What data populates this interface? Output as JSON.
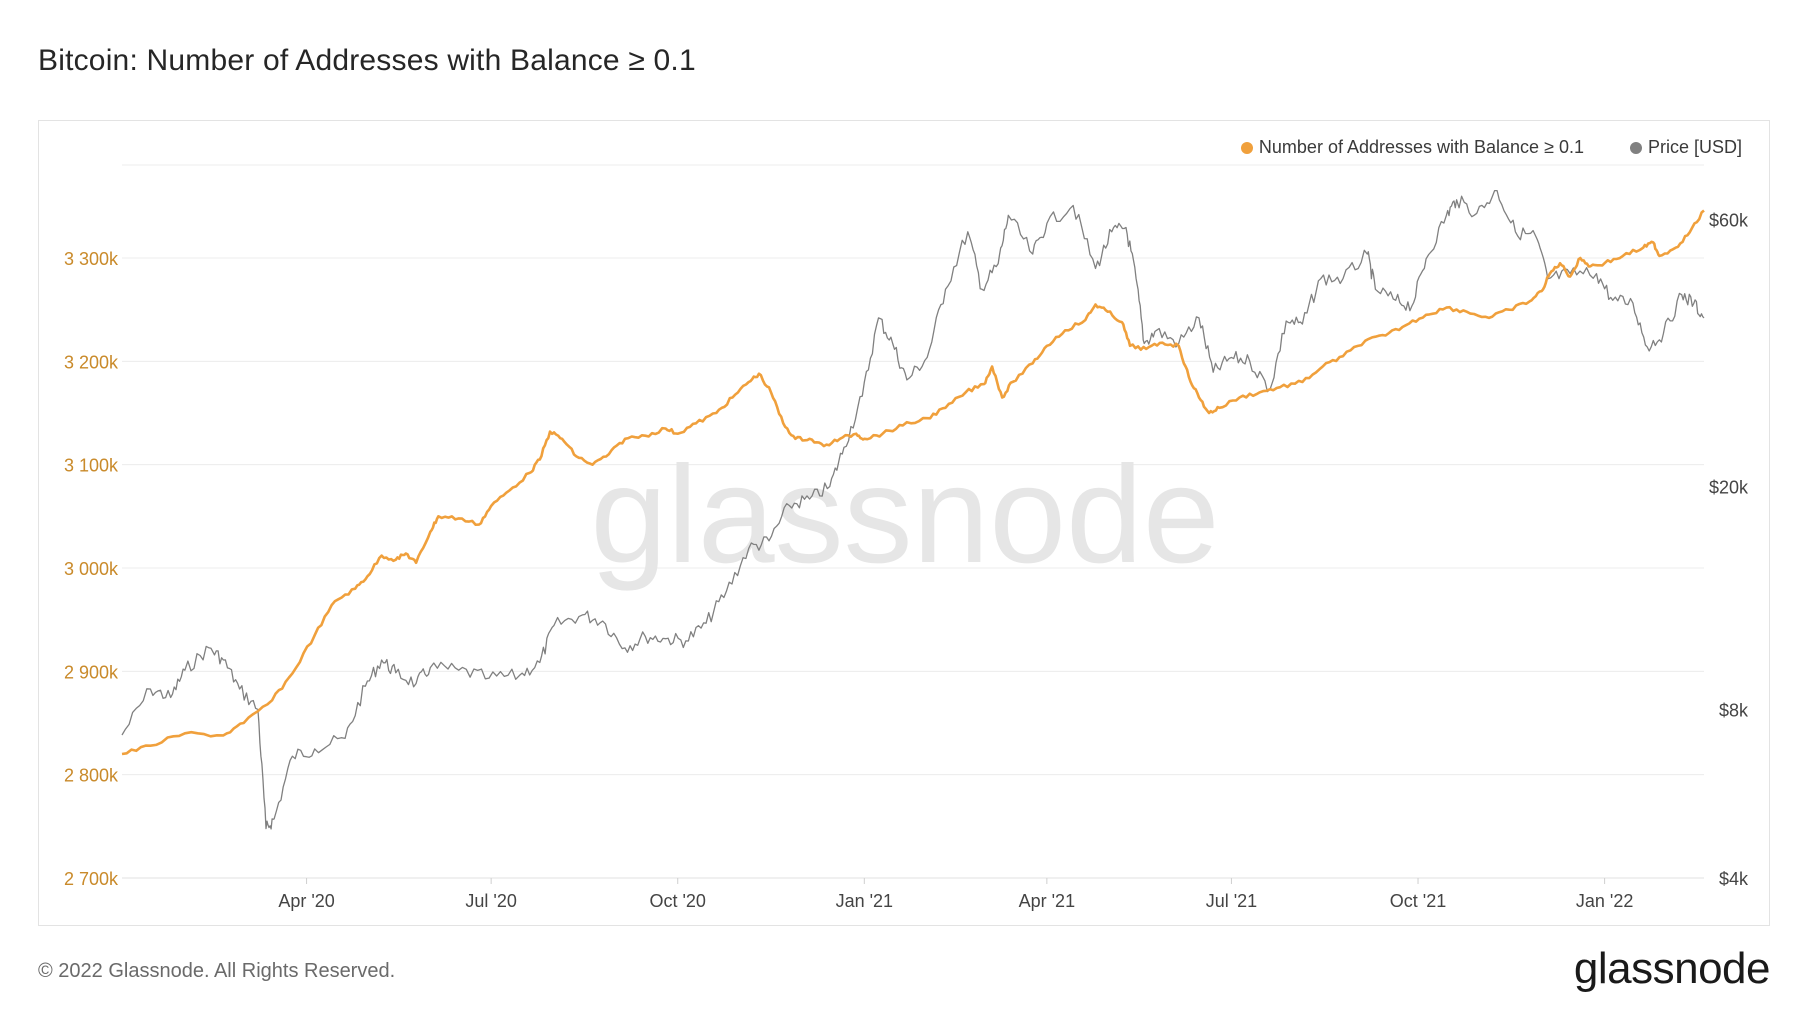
{
  "page": {
    "title": "Bitcoin: Number of Addresses with Balance ≥ 0.1",
    "copyright": "© 2022 Glassnode. All Rights Reserved.",
    "brand": "glassnode",
    "watermark": "glassnode"
  },
  "colors": {
    "addresses": "#f0a03c",
    "price": "#808080",
    "left_axis_text": "#c98a2a",
    "grid": "#ececec"
  },
  "chart_data": {
    "type": "line",
    "title": "Bitcoin: Number of Addresses with Balance ≥ 0.1",
    "x_range": [
      "2020-01-01",
      "2022-02-19"
    ],
    "x_ticks": [
      {
        "label": "Apr '20",
        "date": "2020-04-01"
      },
      {
        "label": "Jul '20",
        "date": "2020-07-01"
      },
      {
        "label": "Oct '20",
        "date": "2020-10-01"
      },
      {
        "label": "Jan '21",
        "date": "2021-01-01"
      },
      {
        "label": "Apr '21",
        "date": "2021-04-01"
      },
      {
        "label": "Jul '21",
        "date": "2021-07-01"
      },
      {
        "label": "Oct '21",
        "date": "2021-10-01"
      },
      {
        "label": "Jan '22",
        "date": "2022-01-01"
      }
    ],
    "y_left": {
      "scale": "linear",
      "range": [
        2700000,
        3390000
      ],
      "ticks": [
        {
          "label": "2 700k",
          "value": 2700000
        },
        {
          "label": "2 800k",
          "value": 2800000
        },
        {
          "label": "2 900k",
          "value": 2900000
        },
        {
          "label": "3 000k",
          "value": 3000000
        },
        {
          "label": "3 100k",
          "value": 3100000
        },
        {
          "label": "3 200k",
          "value": 3200000
        },
        {
          "label": "3 300k",
          "value": 3300000
        }
      ]
    },
    "y_right": {
      "scale": "log",
      "range": [
        4000,
        75000
      ],
      "ticks": [
        {
          "label": "$4k",
          "value": 4000
        },
        {
          "label": "$8k",
          "value": 8000
        },
        {
          "label": "$20k",
          "value": 20000
        },
        {
          "label": "$60k",
          "value": 60000
        }
      ]
    },
    "legend": [
      {
        "name": "Number of Addresses with Balance ≥ 0.1",
        "color": "#f0a03c"
      },
      {
        "name": "Price [USD]",
        "color": "#808080"
      }
    ],
    "series": [
      {
        "name": "Number of Addresses with Balance ≥ 0.1",
        "axis": "left",
        "points": [
          [
            "2020-01-01",
            2820000
          ],
          [
            "2020-01-15",
            2828000
          ],
          [
            "2020-02-01",
            2840000
          ],
          [
            "2020-02-20",
            2838000
          ],
          [
            "2020-03-01",
            2850000
          ],
          [
            "2020-03-15",
            2872000
          ],
          [
            "2020-03-25",
            2898000
          ],
          [
            "2020-04-05",
            2935000
          ],
          [
            "2020-04-15",
            2968000
          ],
          [
            "2020-04-25",
            2980000
          ],
          [
            "2020-05-01",
            2992000
          ],
          [
            "2020-05-08",
            3012000
          ],
          [
            "2020-05-15",
            3008000
          ],
          [
            "2020-05-20",
            3014000
          ],
          [
            "2020-05-25",
            3005000
          ],
          [
            "2020-06-01",
            3035000
          ],
          [
            "2020-06-05",
            3050000
          ],
          [
            "2020-06-15",
            3048000
          ],
          [
            "2020-06-25",
            3042000
          ],
          [
            "2020-07-01",
            3060000
          ],
          [
            "2020-07-10",
            3075000
          ],
          [
            "2020-07-20",
            3092000
          ],
          [
            "2020-07-25",
            3105000
          ],
          [
            "2020-07-30",
            3132000
          ],
          [
            "2020-08-05",
            3125000
          ],
          [
            "2020-08-12",
            3108000
          ],
          [
            "2020-08-20",
            3100000
          ],
          [
            "2020-08-28",
            3110000
          ],
          [
            "2020-09-05",
            3125000
          ],
          [
            "2020-09-15",
            3128000
          ],
          [
            "2020-09-25",
            3135000
          ],
          [
            "2020-10-01",
            3130000
          ],
          [
            "2020-10-10",
            3140000
          ],
          [
            "2020-10-20",
            3150000
          ],
          [
            "2020-10-28",
            3165000
          ],
          [
            "2020-11-05",
            3180000
          ],
          [
            "2020-11-10",
            3188000
          ],
          [
            "2020-11-16",
            3170000
          ],
          [
            "2020-11-22",
            3140000
          ],
          [
            "2020-11-28",
            3125000
          ],
          [
            "2020-12-05",
            3125000
          ],
          [
            "2020-12-12",
            3118000
          ],
          [
            "2020-12-20",
            3125000
          ],
          [
            "2020-12-28",
            3130000
          ],
          [
            "2021-01-01",
            3125000
          ],
          [
            "2021-01-10",
            3130000
          ],
          [
            "2021-01-20",
            3138000
          ],
          [
            "2021-02-01",
            3145000
          ],
          [
            "2021-02-10",
            3155000
          ],
          [
            "2021-02-20",
            3170000
          ],
          [
            "2021-03-01",
            3178000
          ],
          [
            "2021-03-05",
            3195000
          ],
          [
            "2021-03-10",
            3165000
          ],
          [
            "2021-03-15",
            3180000
          ],
          [
            "2021-03-25",
            3198000
          ],
          [
            "2021-04-01",
            3215000
          ],
          [
            "2021-04-10",
            3230000
          ],
          [
            "2021-04-20",
            3240000
          ],
          [
            "2021-04-25",
            3255000
          ],
          [
            "2021-05-01",
            3248000
          ],
          [
            "2021-05-08",
            3238000
          ],
          [
            "2021-05-12",
            3215000
          ],
          [
            "2021-05-20",
            3212000
          ],
          [
            "2021-05-28",
            3218000
          ],
          [
            "2021-06-05",
            3215000
          ],
          [
            "2021-06-10",
            3185000
          ],
          [
            "2021-06-15",
            3165000
          ],
          [
            "2021-06-20",
            3150000
          ],
          [
            "2021-06-25",
            3155000
          ],
          [
            "2021-07-05",
            3165000
          ],
          [
            "2021-07-15",
            3170000
          ],
          [
            "2021-07-25",
            3175000
          ],
          [
            "2021-08-05",
            3180000
          ],
          [
            "2021-08-15",
            3195000
          ],
          [
            "2021-08-25",
            3205000
          ],
          [
            "2021-09-05",
            3220000
          ],
          [
            "2021-09-15",
            3225000
          ],
          [
            "2021-09-25",
            3235000
          ],
          [
            "2021-10-05",
            3245000
          ],
          [
            "2021-10-15",
            3252000
          ],
          [
            "2021-10-25",
            3248000
          ],
          [
            "2021-11-05",
            3242000
          ],
          [
            "2021-11-15",
            3250000
          ],
          [
            "2021-11-25",
            3258000
          ],
          [
            "2021-12-01",
            3268000
          ],
          [
            "2021-12-05",
            3285000
          ],
          [
            "2021-12-10",
            3295000
          ],
          [
            "2021-12-15",
            3282000
          ],
          [
            "2021-12-20",
            3300000
          ],
          [
            "2021-12-25",
            3292000
          ],
          [
            "2022-01-01",
            3295000
          ],
          [
            "2022-01-10",
            3302000
          ],
          [
            "2022-01-20",
            3310000
          ],
          [
            "2022-01-25",
            3315000
          ],
          [
            "2022-01-28",
            3302000
          ],
          [
            "2022-02-05",
            3310000
          ],
          [
            "2022-02-12",
            3325000
          ],
          [
            "2022-02-19",
            3346000
          ]
        ]
      },
      {
        "name": "Price [USD]",
        "axis": "right",
        "points": [
          [
            "2020-01-01",
            7200
          ],
          [
            "2020-01-15",
            8700
          ],
          [
            "2020-01-25",
            8400
          ],
          [
            "2020-02-01",
            9400
          ],
          [
            "2020-02-13",
            10300
          ],
          [
            "2020-02-20",
            9800
          ],
          [
            "2020-02-28",
            8700
          ],
          [
            "2020-03-08",
            8000
          ],
          [
            "2020-03-12",
            4900
          ],
          [
            "2020-03-16",
            5100
          ],
          [
            "2020-03-25",
            6600
          ],
          [
            "2020-04-05",
            6800
          ],
          [
            "2020-04-20",
            7100
          ],
          [
            "2020-04-30",
            8800
          ],
          [
            "2020-05-08",
            9800
          ],
          [
            "2020-05-15",
            9300
          ],
          [
            "2020-05-25",
            8900
          ],
          [
            "2020-06-01",
            9500
          ],
          [
            "2020-06-15",
            9400
          ],
          [
            "2020-06-30",
            9100
          ],
          [
            "2020-07-15",
            9200
          ],
          [
            "2020-07-25",
            9700
          ],
          [
            "2020-08-01",
            11300
          ],
          [
            "2020-08-15",
            11800
          ],
          [
            "2020-08-25",
            11500
          ],
          [
            "2020-09-05",
            10300
          ],
          [
            "2020-09-15",
            10800
          ],
          [
            "2020-09-25",
            10700
          ],
          [
            "2020-10-05",
            10600
          ],
          [
            "2020-10-15",
            11400
          ],
          [
            "2020-10-25",
            13000
          ],
          [
            "2020-11-05",
            15500
          ],
          [
            "2020-11-15",
            16000
          ],
          [
            "2020-11-25",
            18500
          ],
          [
            "2020-12-05",
            19000
          ],
          [
            "2020-12-15",
            20000
          ],
          [
            "2020-12-22",
            23500
          ],
          [
            "2020-12-31",
            29000
          ],
          [
            "2021-01-08",
            40000
          ],
          [
            "2021-01-15",
            36000
          ],
          [
            "2021-01-22",
            31000
          ],
          [
            "2021-02-01",
            34000
          ],
          [
            "2021-02-10",
            45000
          ],
          [
            "2021-02-21",
            57000
          ],
          [
            "2021-02-28",
            45000
          ],
          [
            "2021-03-08",
            50000
          ],
          [
            "2021-03-13",
            61000
          ],
          [
            "2021-03-25",
            52000
          ],
          [
            "2021-04-01",
            59000
          ],
          [
            "2021-04-14",
            63500
          ],
          [
            "2021-04-25",
            49000
          ],
          [
            "2021-05-03",
            57000
          ],
          [
            "2021-05-10",
            58000
          ],
          [
            "2021-05-15",
            47000
          ],
          [
            "2021-05-19",
            36000
          ],
          [
            "2021-05-25",
            38000
          ],
          [
            "2021-06-05",
            36000
          ],
          [
            "2021-06-15",
            40000
          ],
          [
            "2021-06-22",
            32000
          ],
          [
            "2021-07-01",
            34000
          ],
          [
            "2021-07-10",
            33500
          ],
          [
            "2021-07-20",
            29800
          ],
          [
            "2021-07-28",
            39500
          ],
          [
            "2021-08-05",
            39000
          ],
          [
            "2021-08-14",
            47000
          ],
          [
            "2021-08-25",
            47000
          ],
          [
            "2021-09-06",
            52000
          ],
          [
            "2021-09-10",
            45000
          ],
          [
            "2021-09-20",
            43000
          ],
          [
            "2021-09-28",
            42000
          ],
          [
            "2021-10-05",
            51000
          ],
          [
            "2021-10-15",
            61000
          ],
          [
            "2021-10-20",
            65000
          ],
          [
            "2021-10-30",
            61500
          ],
          [
            "2021-11-09",
            67500
          ],
          [
            "2021-11-18",
            57000
          ],
          [
            "2021-11-28",
            56000
          ],
          [
            "2021-12-04",
            47000
          ],
          [
            "2021-12-15",
            48000
          ],
          [
            "2021-12-28",
            48000
          ],
          [
            "2022-01-05",
            43000
          ],
          [
            "2022-01-15",
            42500
          ],
          [
            "2022-01-22",
            35500
          ],
          [
            "2022-01-30",
            37500
          ],
          [
            "2022-02-08",
            44000
          ],
          [
            "2022-02-14",
            42500
          ],
          [
            "2022-02-19",
            40000
          ]
        ]
      }
    ]
  }
}
